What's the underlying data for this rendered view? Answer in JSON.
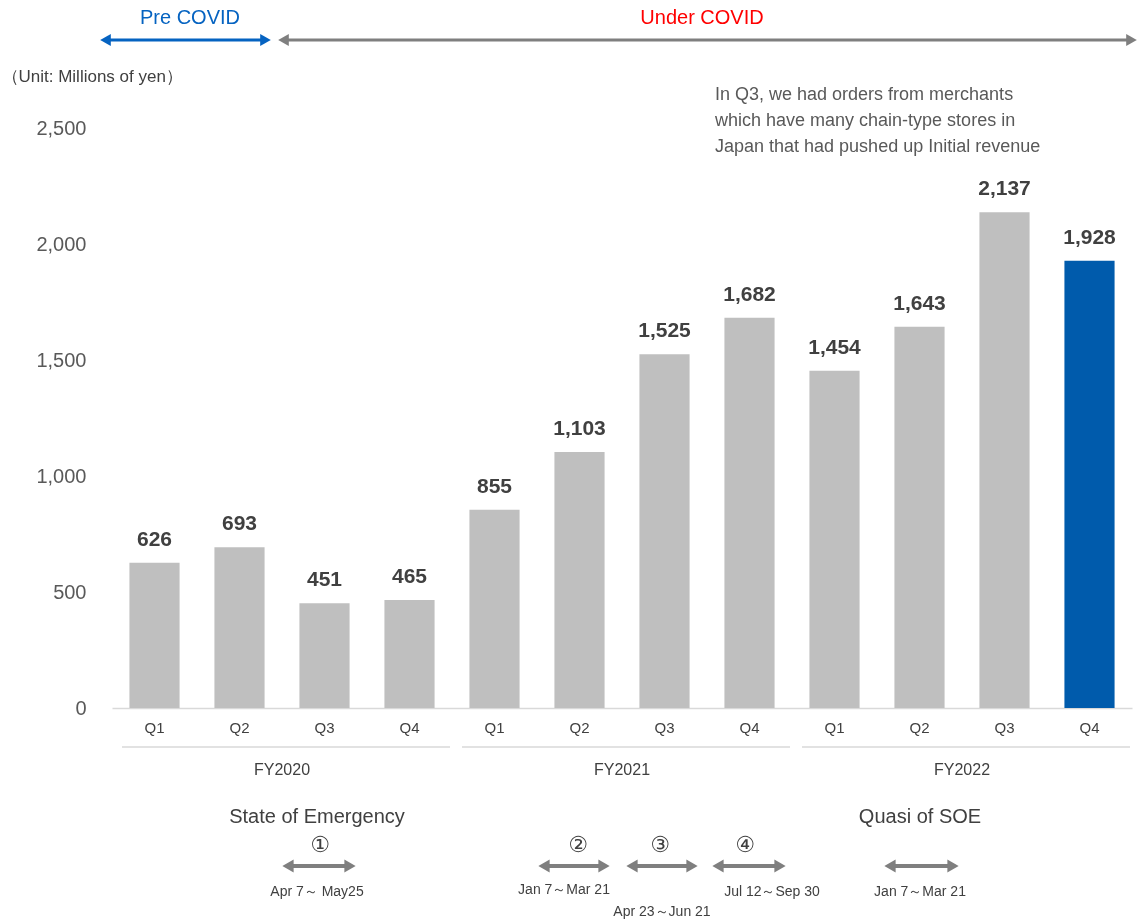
{
  "chart_data": {
    "type": "bar",
    "ylabel": "（Unit: Millions of yen）",
    "categories": [
      "Q1",
      "Q2",
      "Q3",
      "Q4",
      "Q1",
      "Q2",
      "Q3",
      "Q4",
      "Q1",
      "Q2",
      "Q3",
      "Q4"
    ],
    "values": [
      626,
      693,
      451,
      465,
      855,
      1103,
      1525,
      1682,
      1454,
      1643,
      2137,
      1928
    ],
    "value_labels": [
      "626",
      "693",
      "451",
      "465",
      "855",
      "1,103",
      "1,525",
      "1,682",
      "1,454",
      "1,643",
      "2,137",
      "1,928"
    ],
    "colors": [
      "#bfbfbf",
      "#bfbfbf",
      "#bfbfbf",
      "#bfbfbf",
      "#bfbfbf",
      "#bfbfbf",
      "#bfbfbf",
      "#bfbfbf",
      "#bfbfbf",
      "#bfbfbf",
      "#bfbfbf",
      "#005bac"
    ],
    "ylim": [
      0,
      2500
    ],
    "yticks": [
      0,
      500,
      {
        "value": 1000,
        "label": "1,000"
      },
      {
        "value": 1500,
        "label": "1,500"
      },
      {
        "value": 2000,
        "label": "2,000"
      },
      {
        "value": 2500,
        "label": "2,500"
      }
    ],
    "grid": false,
    "annotations": [
      "Pre COVID",
      "Under COVID",
      "In Q3, we had orders from merchants\nwhich have many chain-type stores in\nJapan that had pushed up Initial revenue",
      "FY2020",
      "FY2021",
      "FY2022",
      "State of Emergency",
      "①",
      "Apr 7～ May25",
      "②",
      "Jan 7～Mar 21",
      "③",
      "Apr 23～Jun 21",
      "④",
      "Jul 12～Sep 30",
      "Quasi of SOE",
      "Jan 7～Mar 21"
    ]
  }
}
